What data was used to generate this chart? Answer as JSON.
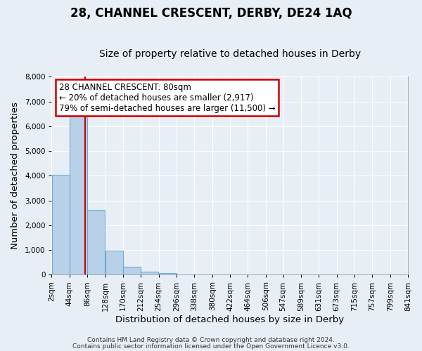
{
  "title": "28, CHANNEL CRESCENT, DERBY, DE24 1AQ",
  "subtitle": "Size of property relative to detached houses in Derby",
  "xlabel": "Distribution of detached houses by size in Derby",
  "ylabel": "Number of detached properties",
  "bar_edges": [
    2,
    44,
    86,
    128,
    170,
    212,
    254,
    296,
    338,
    380,
    422,
    464,
    506,
    547,
    589,
    631,
    673,
    715,
    757,
    799,
    841
  ],
  "bar_heights": [
    4050,
    6600,
    2620,
    980,
    320,
    130,
    60,
    0,
    0,
    0,
    0,
    0,
    0,
    0,
    0,
    0,
    0,
    0,
    0,
    0
  ],
  "bar_color": "#b8d0e8",
  "bar_edge_color": "#6aadd5",
  "vline_x": 80,
  "vline_color": "#cc0000",
  "annotation_box_text": "28 CHANNEL CRESCENT: 80sqm\n← 20% of detached houses are smaller (2,917)\n79% of semi-detached houses are larger (11,500) →",
  "annotation_box_facecolor": "#ffffff",
  "annotation_box_edgecolor": "#cc0000",
  "ylim": [
    0,
    8000
  ],
  "tick_labels": [
    "2sqm",
    "44sqm",
    "86sqm",
    "128sqm",
    "170sqm",
    "212sqm",
    "254sqm",
    "296sqm",
    "338sqm",
    "380sqm",
    "422sqm",
    "464sqm",
    "506sqm",
    "547sqm",
    "589sqm",
    "631sqm",
    "673sqm",
    "715sqm",
    "757sqm",
    "799sqm",
    "841sqm"
  ],
  "footer1": "Contains HM Land Registry data © Crown copyright and database right 2024.",
  "footer2": "Contains public sector information licensed under the Open Government Licence v3.0.",
  "background_color": "#e8eef5",
  "plot_bg_color": "#e8eef5",
  "grid_color": "#ffffff",
  "title_fontsize": 12,
  "subtitle_fontsize": 10,
  "axis_label_fontsize": 9.5,
  "tick_fontsize": 7.5,
  "annotation_fontsize": 8.5,
  "footer_fontsize": 6.5
}
